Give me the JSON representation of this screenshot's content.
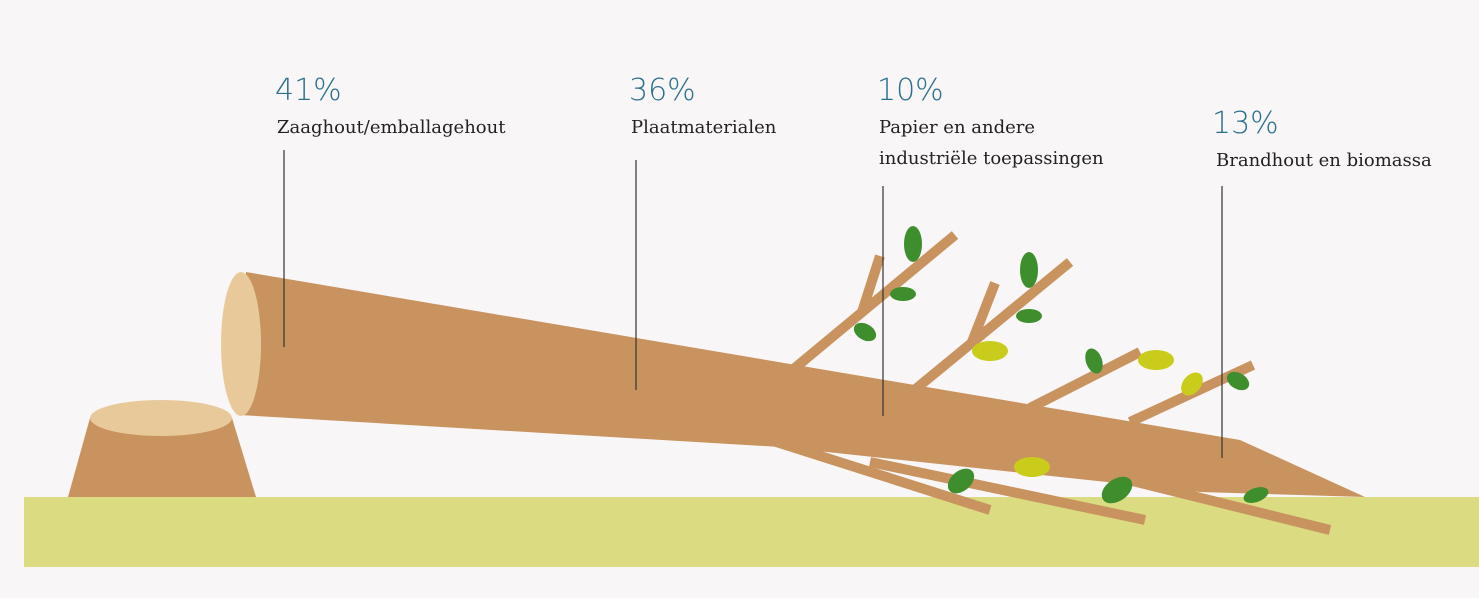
{
  "items": [
    {
      "percent": "41%",
      "label": [
        "Zaaghout/emballagehout"
      ]
    },
    {
      "percent": "36%",
      "label": [
        "Plaatmaterialen"
      ]
    },
    {
      "percent": "10%",
      "label": [
        "Papier en andere",
        "industriële toepassingen"
      ]
    },
    {
      "percent": "13%",
      "label": [
        "Brandhout en biomassa"
      ]
    }
  ]
}
